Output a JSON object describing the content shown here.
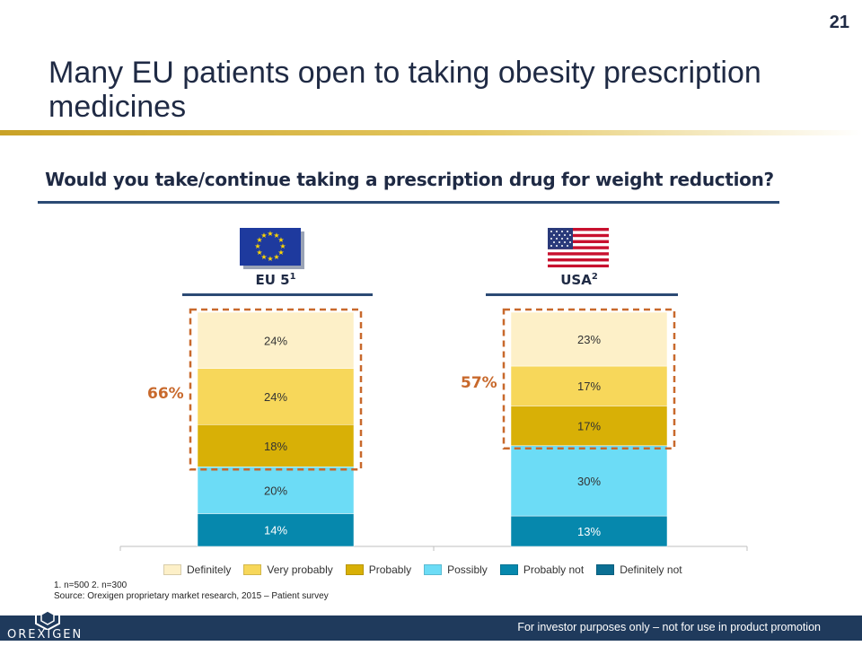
{
  "slide_number": "21",
  "title": "Many EU patients open to taking obesity prescription medicines",
  "question": "Would you take/continue taking a prescription drug for weight reduction?",
  "groups": [
    {
      "label": "EU 5",
      "sup": "1",
      "callout": "66%"
    },
    {
      "label": "USA",
      "sup": "2",
      "callout": "57%"
    }
  ],
  "colors": {
    "Definitely": "#fdf0c8",
    "Very probably": "#f7d75a",
    "Probably": "#d8b006",
    "Possibly": "#6cdcf6",
    "Probably not": "#0688ad",
    "Definitely not": "#0b6f93",
    "callout": "#c8692c",
    "navy": "#1f3a5c"
  },
  "chart_data": {
    "type": "bar",
    "stacked": true,
    "categories": [
      "EU 5",
      "USA"
    ],
    "series": [
      {
        "name": "Probably not",
        "values": [
          14,
          13
        ]
      },
      {
        "name": "Possibly",
        "values": [
          20,
          30
        ]
      },
      {
        "name": "Probably",
        "values": [
          18,
          17
        ]
      },
      {
        "name": "Very probably",
        "values": [
          24,
          17
        ]
      },
      {
        "name": "Definitely",
        "values": [
          24,
          23
        ]
      }
    ],
    "legend": [
      "Definitely",
      "Very probably",
      "Probably",
      "Possibly",
      "Probably not",
      "Definitely not"
    ],
    "legend_position": "bottom",
    "ylim": [
      0,
      100
    ]
  },
  "footnote": {
    "line1": "1. n=500  2. n=300",
    "line2": "Source: Orexigen proprietary market research, 2015 – Patient survey"
  },
  "footer": {
    "disclaimer": "For investor purposes only – not for use in product promotion",
    "logo_text": "OREXIGEN"
  }
}
